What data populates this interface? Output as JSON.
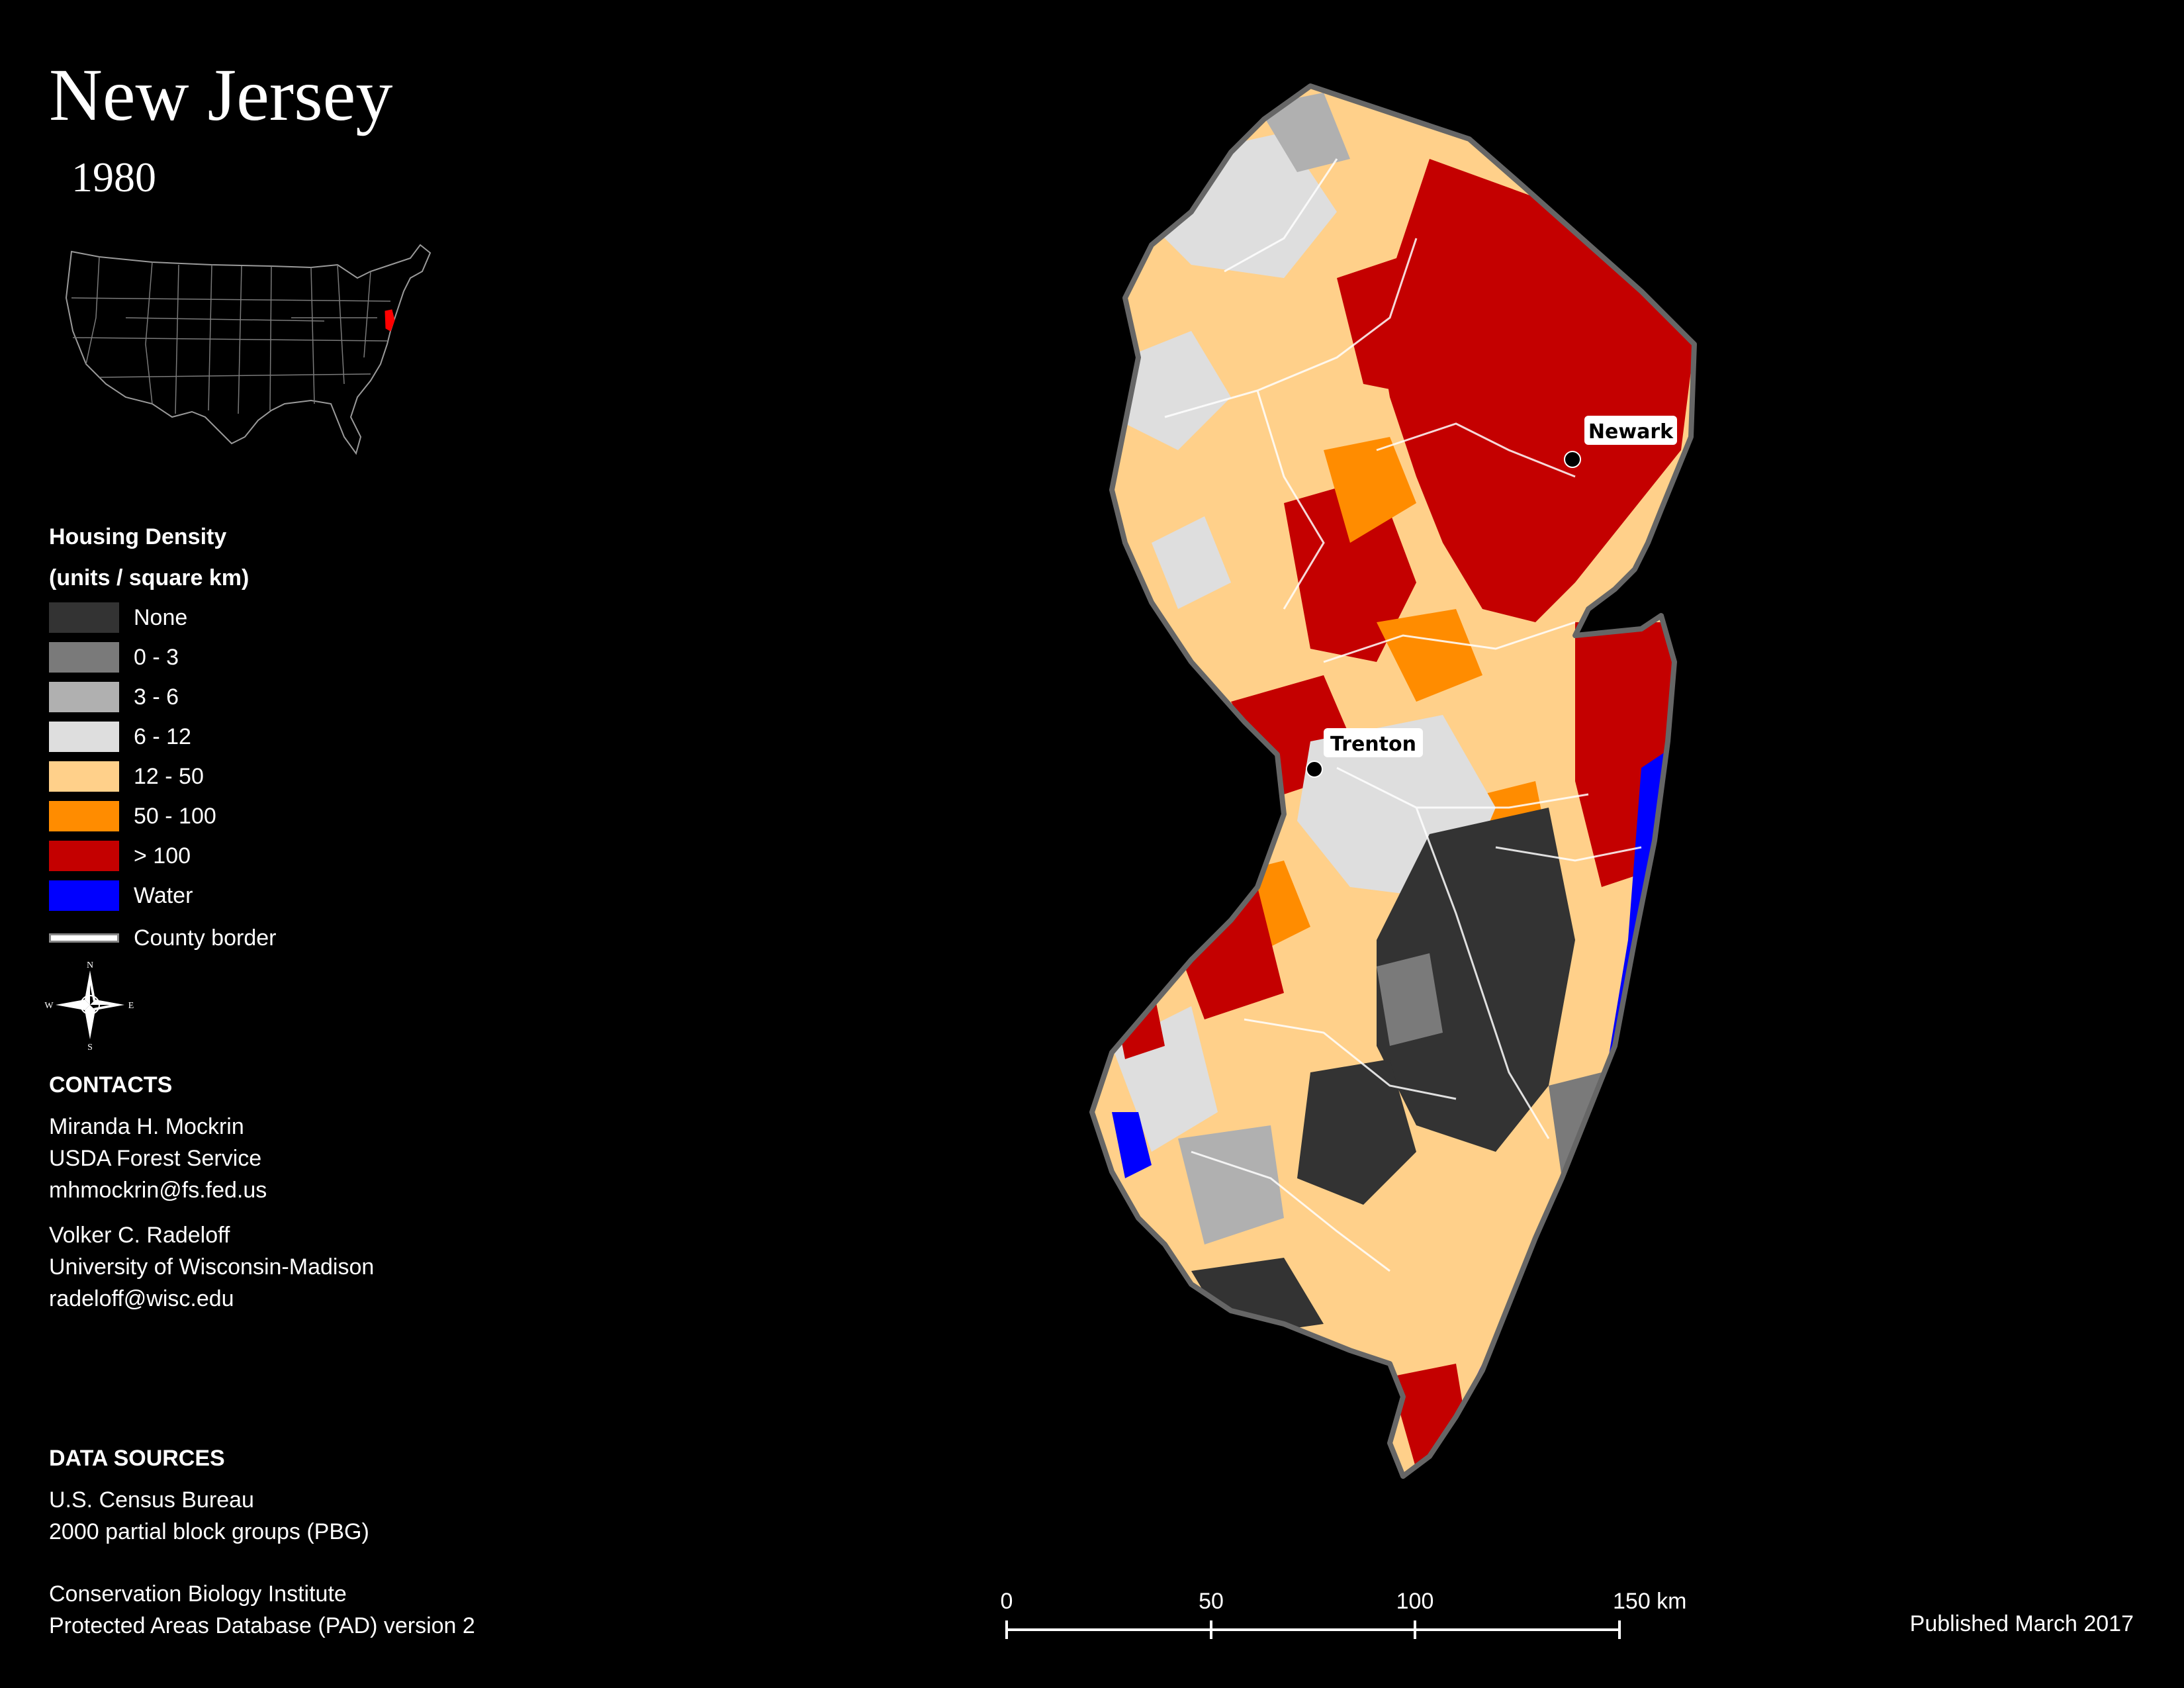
{
  "title": "New Jersey",
  "subtitle": "1980",
  "legend": {
    "title_line1": "Housing Density",
    "title_line2": "(units / square km)",
    "items": [
      {
        "label": "None",
        "color": "#333333"
      },
      {
        "label": "0 - 3",
        "color": "#7a7a7a"
      },
      {
        "label": "3 - 6",
        "color": "#b0b0b0"
      },
      {
        "label": "6 - 12",
        "color": "#dedede"
      },
      {
        "label": "12 - 50",
        "color": "#ffd08a"
      },
      {
        "label": "50 - 100",
        "color": "#ff8c00"
      },
      {
        "label": "> 100",
        "color": "#c40000"
      },
      {
        "label": "Water",
        "color": "#0000ff"
      }
    ],
    "county_border_label": "County border"
  },
  "compass": {
    "n": "N",
    "s": "S",
    "e": "E",
    "w": "W"
  },
  "contacts": {
    "header": "CONTACTS",
    "person1": {
      "name": "Miranda H. Mockrin",
      "org": "USDA Forest Service",
      "email": "mhmockrin@fs.fed.us"
    },
    "person2": {
      "name": "Volker C. Radeloff",
      "org": "University of Wisconsin-Madison",
      "email": "radeloff@wisc.edu"
    }
  },
  "data_sources": {
    "header": "DATA SOURCES",
    "line1": "U.S. Census Bureau",
    "line2": "2000 partial block groups (PBG)",
    "line3": "Conservation Biology Institute",
    "line4": "Protected Areas Database (PAD) version 2"
  },
  "cities": [
    {
      "name": "Newark"
    },
    {
      "name": "Trenton"
    }
  ],
  "scale_bar": {
    "ticks": [
      "0",
      "50",
      "100",
      "150 km"
    ]
  },
  "published": "Published March 2017",
  "colors": {
    "background": "#000000",
    "state_outline": "#666666",
    "county_border": "#ffffff",
    "highlight_state": "#ff0000"
  }
}
